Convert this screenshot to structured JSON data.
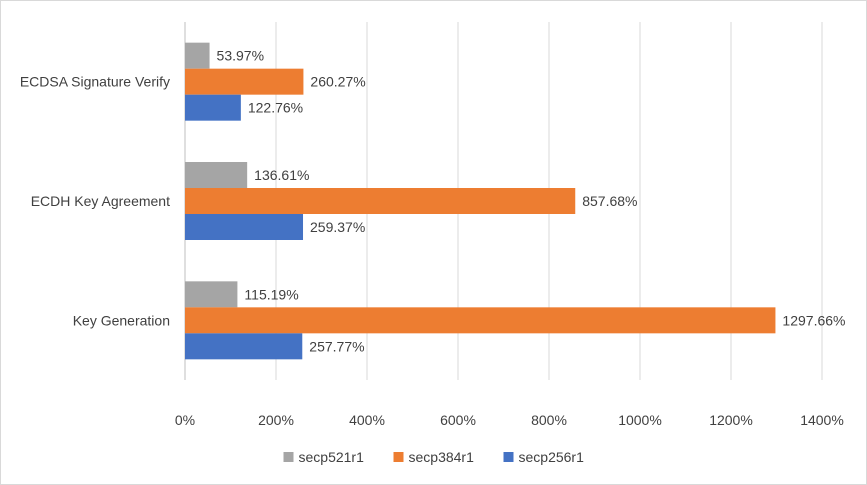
{
  "chart_data": {
    "type": "bar",
    "orientation": "horizontal",
    "categories": [
      "ECDSA Signature Verify",
      "ECDH Key Agreement",
      "Key Generation"
    ],
    "series": [
      {
        "name": "secp521r1",
        "color": "#a5a5a5",
        "values": [
          53.97,
          136.61,
          115.19
        ],
        "labels": [
          "53.97%",
          "136.61%",
          "115.19%"
        ]
      },
      {
        "name": "secp384r1",
        "color": "#ed7d31",
        "values": [
          260.27,
          857.68,
          1297.66
        ],
        "labels": [
          "260.27%",
          "857.68%",
          "1297.66%"
        ]
      },
      {
        "name": "secp256r1",
        "color": "#4472c4",
        "values": [
          122.76,
          259.37,
          257.77
        ],
        "labels": [
          "122.76%",
          "259.37%",
          "257.77%"
        ]
      }
    ],
    "xlim": [
      0,
      1400
    ],
    "xticks": [
      0,
      200,
      400,
      600,
      800,
      1000,
      1200,
      1400
    ],
    "xtick_labels": [
      "0%",
      "200%",
      "400%",
      "600%",
      "800%",
      "1000%",
      "1200%",
      "1400%"
    ],
    "grid": true,
    "legend_position": "bottom"
  }
}
